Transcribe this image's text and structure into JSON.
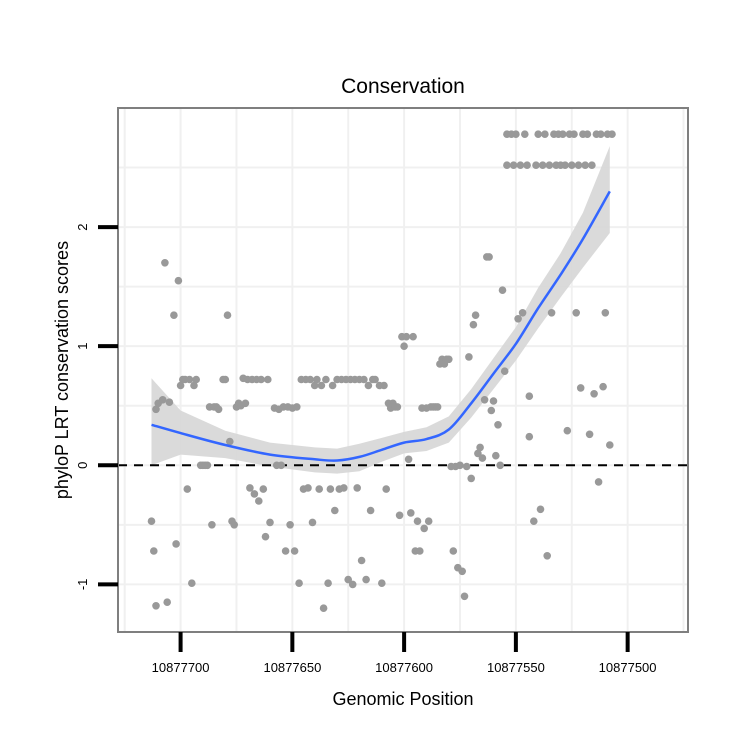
{
  "chart_data": {
    "type": "scatter",
    "title": "Conservation",
    "xlabel": "Genomic Position",
    "ylabel": "phyloP LRT conservation scores",
    "x_reversed": true,
    "xlim": [
      10877728,
      10877473
    ],
    "ylim": [
      -1.4,
      3.0
    ],
    "x_ticks": [
      10877700,
      10877650,
      10877600,
      10877550,
      10877500
    ],
    "x_tick_labels": [
      "10877700",
      "10877650",
      "10877600",
      "10877550",
      "10877500"
    ],
    "y_ticks": [
      -1,
      0,
      1,
      2
    ],
    "y_tick_labels": [
      "-1",
      "0",
      "1",
      "2"
    ],
    "grid": true,
    "legend": "none",
    "reference_line": {
      "y": 0,
      "style": "dashed",
      "color": "#000000"
    },
    "colors": {
      "points": "#999999",
      "smooth": "#3366ff",
      "ribbon": "#d6d6d6",
      "panel_border": "#7f7f7f",
      "grid": "#f0f0f0"
    },
    "points": [
      [
        10877713,
        -0.47
      ],
      [
        10877712,
        -0.72
      ],
      [
        10877711,
        -1.18
      ],
      [
        10877711,
        0.47
      ],
      [
        10877710,
        0.52
      ],
      [
        10877708,
        0.55
      ],
      [
        10877707,
        1.7
      ],
      [
        10877706,
        -1.15
      ],
      [
        10877705,
        0.53
      ],
      [
        10877703,
        1.26
      ],
      [
        10877702,
        -0.66
      ],
      [
        10877701,
        1.55
      ],
      [
        10877700,
        0.67
      ],
      [
        10877699,
        0.72
      ],
      [
        10877698,
        0.72
      ],
      [
        10877697,
        -0.2
      ],
      [
        10877696,
        0.72
      ],
      [
        10877695,
        -0.99
      ],
      [
        10877694,
        0.67
      ],
      [
        10877693,
        0.72
      ],
      [
        10877691,
        0.0
      ],
      [
        10877690,
        0.0
      ],
      [
        10877689,
        0.0
      ],
      [
        10877688,
        0.0
      ],
      [
        10877687,
        0.49
      ],
      [
        10877686,
        -0.5
      ],
      [
        10877685,
        0.49
      ],
      [
        10877684,
        0.49
      ],
      [
        10877683,
        0.47
      ],
      [
        10877681,
        0.72
      ],
      [
        10877680,
        0.72
      ],
      [
        10877679,
        1.26
      ],
      [
        10877678,
        0.2
      ],
      [
        10877677,
        -0.47
      ],
      [
        10877676,
        -0.5
      ],
      [
        10877675,
        0.49
      ],
      [
        10877674,
        0.52
      ],
      [
        10877673,
        0.5
      ],
      [
        10877672,
        0.73
      ],
      [
        10877671,
        0.52
      ],
      [
        10877670,
        0.72
      ],
      [
        10877669,
        -0.19
      ],
      [
        10877668,
        0.72
      ],
      [
        10877667,
        -0.24
      ],
      [
        10877666,
        0.72
      ],
      [
        10877665,
        -0.3
      ],
      [
        10877664,
        0.72
      ],
      [
        10877663,
        -0.2
      ],
      [
        10877662,
        -0.6
      ],
      [
        10877661,
        0.72
      ],
      [
        10877660,
        -0.48
      ],
      [
        10877658,
        0.48
      ],
      [
        10877657,
        0.0
      ],
      [
        10877656,
        0.47
      ],
      [
        10877655,
        0.0
      ],
      [
        10877654,
        0.49
      ],
      [
        10877653,
        -0.72
      ],
      [
        10877652,
        0.49
      ],
      [
        10877651,
        -0.5
      ],
      [
        10877650,
        0.48
      ],
      [
        10877649,
        -0.72
      ],
      [
        10877648,
        0.49
      ],
      [
        10877647,
        -0.99
      ],
      [
        10877646,
        0.72
      ],
      [
        10877645,
        -0.2
      ],
      [
        10877644,
        0.72
      ],
      [
        10877643,
        -0.19
      ],
      [
        10877642,
        0.72
      ],
      [
        10877641,
        -0.48
      ],
      [
        10877640,
        0.67
      ],
      [
        10877639,
        0.72
      ],
      [
        10877638,
        -0.2
      ],
      [
        10877637,
        0.67
      ],
      [
        10877636,
        -1.2
      ],
      [
        10877635,
        0.72
      ],
      [
        10877634,
        -0.99
      ],
      [
        10877633,
        -0.2
      ],
      [
        10877632,
        0.67
      ],
      [
        10877631,
        -0.38
      ],
      [
        10877630,
        0.72
      ],
      [
        10877629,
        -0.2
      ],
      [
        10877628,
        0.72
      ],
      [
        10877627,
        -0.19
      ],
      [
        10877626,
        0.72
      ],
      [
        10877625,
        -0.96
      ],
      [
        10877624,
        0.72
      ],
      [
        10877623,
        -1.0
      ],
      [
        10877622,
        0.72
      ],
      [
        10877621,
        -0.19
      ],
      [
        10877620,
        0.72
      ],
      [
        10877619,
        -0.8
      ],
      [
        10877618,
        0.72
      ],
      [
        10877617,
        -0.96
      ],
      [
        10877616,
        0.67
      ],
      [
        10877615,
        -0.38
      ],
      [
        10877614,
        0.72
      ],
      [
        10877613,
        0.72
      ],
      [
        10877611,
        0.67
      ],
      [
        10877610,
        -0.99
      ],
      [
        10877609,
        0.67
      ],
      [
        10877608,
        -0.2
      ],
      [
        10877607,
        0.52
      ],
      [
        10877606,
        0.48
      ],
      [
        10877605,
        0.52
      ],
      [
        10877604,
        0.49
      ],
      [
        10877603,
        0.49
      ],
      [
        10877602,
        -0.42
      ],
      [
        10877601,
        1.08
      ],
      [
        10877600,
        1.0
      ],
      [
        10877599,
        1.08
      ],
      [
        10877598,
        0.05
      ],
      [
        10877597,
        -0.4
      ],
      [
        10877596,
        1.08
      ],
      [
        10877595,
        -0.72
      ],
      [
        10877594,
        -0.47
      ],
      [
        10877593,
        -0.72
      ],
      [
        10877592,
        0.48
      ],
      [
        10877591,
        -0.53
      ],
      [
        10877590,
        0.48
      ],
      [
        10877589,
        -0.47
      ],
      [
        10877588,
        0.49
      ],
      [
        10877587,
        0.49
      ],
      [
        10877586,
        0.49
      ],
      [
        10877585,
        0.49
      ],
      [
        10877584,
        0.85
      ],
      [
        10877583,
        0.89
      ],
      [
        10877582,
        0.85
      ],
      [
        10877581,
        0.89
      ],
      [
        10877580,
        0.89
      ],
      [
        10877579,
        -0.01
      ],
      [
        10877578,
        -0.72
      ],
      [
        10877577,
        -0.01
      ],
      [
        10877576,
        -0.86
      ],
      [
        10877575,
        0.0
      ],
      [
        10877574,
        -0.89
      ],
      [
        10877573,
        -1.1
      ],
      [
        10877572,
        -0.01
      ],
      [
        10877571,
        0.91
      ],
      [
        10877570,
        -0.11
      ],
      [
        10877569,
        1.18
      ],
      [
        10877568,
        1.26
      ],
      [
        10877567,
        0.1
      ],
      [
        10877566,
        0.15
      ],
      [
        10877565,
        0.06
      ],
      [
        10877564,
        0.55
      ],
      [
        10877563,
        1.75
      ],
      [
        10877562,
        1.75
      ],
      [
        10877561,
        0.46
      ],
      [
        10877560,
        0.54
      ],
      [
        10877559,
        0.08
      ],
      [
        10877558,
        0.34
      ],
      [
        10877557,
        0.0
      ],
      [
        10877556,
        1.47
      ],
      [
        10877555,
        0.79
      ],
      [
        10877554,
        2.52
      ],
      [
        10877554,
        2.78
      ],
      [
        10877552,
        2.78
      ],
      [
        10877551,
        2.52
      ],
      [
        10877550,
        2.78
      ],
      [
        10877549,
        1.23
      ],
      [
        10877548,
        2.52
      ],
      [
        10877547,
        1.28
      ],
      [
        10877546,
        2.78
      ],
      [
        10877545,
        2.52
      ],
      [
        10877544,
        0.24
      ],
      [
        10877544,
        0.58
      ],
      [
        10877542,
        -0.47
      ],
      [
        10877541,
        2.52
      ],
      [
        10877540,
        2.78
      ],
      [
        10877539,
        -0.37
      ],
      [
        10877538,
        2.52
      ],
      [
        10877537,
        2.78
      ],
      [
        10877536,
        -0.76
      ],
      [
        10877535,
        2.52
      ],
      [
        10877534,
        1.28
      ],
      [
        10877533,
        2.78
      ],
      [
        10877532,
        2.52
      ],
      [
        10877531,
        2.78
      ],
      [
        10877530,
        2.52
      ],
      [
        10877529,
        2.78
      ],
      [
        10877528,
        2.52
      ],
      [
        10877527,
        0.29
      ],
      [
        10877526,
        2.78
      ],
      [
        10877525,
        2.52
      ],
      [
        10877524,
        2.78
      ],
      [
        10877523,
        1.28
      ],
      [
        10877522,
        2.52
      ],
      [
        10877521,
        0.65
      ],
      [
        10877520,
        2.78
      ],
      [
        10877519,
        2.52
      ],
      [
        10877518,
        2.78
      ],
      [
        10877517,
        0.26
      ],
      [
        10877516,
        2.52
      ],
      [
        10877515,
        0.6
      ],
      [
        10877514,
        2.78
      ],
      [
        10877513,
        -0.14
      ],
      [
        10877512,
        2.78
      ],
      [
        10877511,
        0.66
      ],
      [
        10877510,
        1.28
      ],
      [
        10877509,
        2.78
      ],
      [
        10877508,
        0.17
      ],
      [
        10877507,
        2.78
      ]
    ],
    "smooth": {
      "x": [
        10877713,
        10877700,
        10877680,
        10877660,
        10877640,
        10877630,
        10877620,
        10877610,
        10877600,
        10877590,
        10877580,
        10877570,
        10877560,
        10877550,
        10877540,
        10877530,
        10877520,
        10877508
      ],
      "y": [
        0.34,
        0.27,
        0.17,
        0.09,
        0.05,
        0.04,
        0.07,
        0.13,
        0.19,
        0.22,
        0.3,
        0.52,
        0.77,
        1.02,
        1.32,
        1.6,
        1.9,
        2.3
      ],
      "lower": [
        0.0,
        0.09,
        0.06,
        -0.01,
        -0.06,
        -0.07,
        -0.05,
        0.03,
        0.1,
        0.12,
        0.19,
        0.4,
        0.64,
        0.88,
        1.15,
        1.41,
        1.66,
        1.95
      ],
      "upper": [
        0.73,
        0.46,
        0.29,
        0.19,
        0.15,
        0.14,
        0.18,
        0.23,
        0.28,
        0.32,
        0.41,
        0.64,
        0.9,
        1.16,
        1.49,
        1.78,
        2.12,
        2.68
      ]
    }
  }
}
